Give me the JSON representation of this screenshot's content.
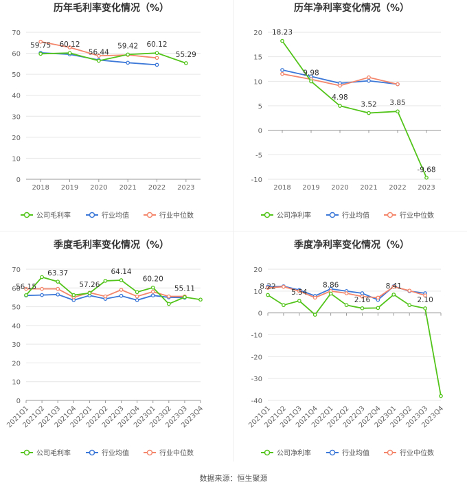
{
  "source_text": "数据来源：恒生聚源",
  "colors": {
    "company": "#52c41a",
    "industry_avg": "#3c78d8",
    "industry_median": "#f4866b",
    "grid": "#e6e6e6",
    "axis_text": "#666666",
    "label_text": "#333333"
  },
  "chart_data": [
    {
      "type": "line",
      "title": "历年毛利率变化情况（%）",
      "categories": [
        "2018",
        "2019",
        "2020",
        "2021",
        "2022",
        "2023"
      ],
      "ylim": [
        0,
        70
      ],
      "yticks": [
        0,
        10,
        20,
        30,
        40,
        50,
        60,
        70
      ],
      "grid": true,
      "legend_position": "bottom",
      "series": [
        {
          "name": "公司毛利率",
          "color": "#52c41a",
          "values": [
            59.75,
            60.12,
            56.44,
            59.42,
            60.12,
            55.29
          ],
          "labels": [
            "59.75",
            "60.12",
            "56.44",
            "59.42",
            "60.12",
            "55.29"
          ]
        },
        {
          "name": "行业均值",
          "color": "#3c78d8",
          "values": [
            60.2,
            59.5,
            56.8,
            55.5,
            54.5,
            null
          ]
        },
        {
          "name": "行业中位数",
          "color": "#f4866b",
          "values": [
            65.5,
            62.8,
            58.8,
            59.2,
            57.8,
            null
          ]
        }
      ]
    },
    {
      "type": "line",
      "title": "历年净利率变化情况（%）",
      "categories": [
        "2018",
        "2019",
        "2020",
        "2021",
        "2022",
        "2023"
      ],
      "ylim": [
        -10,
        20
      ],
      "yticks": [
        -10,
        -5,
        0,
        5,
        10,
        15,
        20
      ],
      "grid": true,
      "legend_position": "bottom",
      "series": [
        {
          "name": "公司净利率",
          "color": "#52c41a",
          "values": [
            18.23,
            9.98,
            4.98,
            3.52,
            3.85,
            -9.68
          ],
          "labels": [
            "18.23",
            "9.98",
            "4.98",
            "3.52",
            "3.85",
            "-9.68"
          ]
        },
        {
          "name": "行业均值",
          "color": "#3c78d8",
          "values": [
            12.3,
            11.0,
            9.6,
            10.1,
            9.4,
            null
          ]
        },
        {
          "name": "行业中位数",
          "color": "#f4866b",
          "values": [
            11.5,
            10.4,
            9.1,
            10.8,
            9.4,
            null
          ]
        }
      ]
    },
    {
      "type": "line",
      "title": "季度毛利率变化情况（%）",
      "categories": [
        "2021Q1",
        "2021Q2",
        "2021Q3",
        "2021Q4",
        "2022Q1",
        "2022Q2",
        "2022Q3",
        "2022Q4",
        "2023Q1",
        "2023Q2",
        "2023Q3",
        "2023Q4"
      ],
      "ylim": [
        0,
        70
      ],
      "yticks": [
        0,
        10,
        20,
        30,
        40,
        50,
        60,
        70
      ],
      "grid": true,
      "legend_position": "bottom",
      "series": [
        {
          "name": "公司毛利率",
          "color": "#52c41a",
          "values": [
            56.15,
            65.8,
            63.37,
            56.2,
            57.26,
            63.8,
            64.14,
            57.8,
            60.2,
            51.5,
            55.11,
            53.8
          ],
          "labels": [
            "56.15",
            "",
            "63.37",
            "",
            "57.26",
            "",
            "64.14",
            "",
            "60.20",
            "",
            "55.11",
            ""
          ]
        },
        {
          "name": "行业均值",
          "color": "#3c78d8",
          "values": [
            56.0,
            56.2,
            56.5,
            53.5,
            56.0,
            54.2,
            55.8,
            53.5,
            56.0,
            55.0,
            54.8,
            null
          ]
        },
        {
          "name": "行业中位数",
          "color": "#f4866b",
          "values": [
            59.5,
            59.5,
            59.5,
            55.0,
            57.5,
            55.5,
            59.0,
            55.5,
            58.0,
            55.5,
            55.5,
            null
          ]
        }
      ]
    },
    {
      "type": "line",
      "title": "季度净利率变化情况（%）",
      "categories": [
        "2021Q1",
        "2021Q2",
        "2021Q3",
        "2021Q4",
        "2022Q1",
        "2022Q2",
        "2022Q3",
        "2022Q4",
        "2023Q1",
        "2023Q2",
        "2023Q3",
        "2023Q4"
      ],
      "ylim": [
        -40,
        20
      ],
      "yticks": [
        -40,
        -30,
        -20,
        -10,
        0,
        10,
        20
      ],
      "grid": true,
      "legend_position": "bottom",
      "series": [
        {
          "name": "公司净利率",
          "color": "#52c41a",
          "values": [
            8.22,
            3.6,
            5.54,
            -0.8,
            8.86,
            3.6,
            2.16,
            2.3,
            8.41,
            3.6,
            2.1,
            -38.0
          ],
          "labels": [
            "8.22",
            "",
            "5.54",
            "",
            "8.86",
            "",
            "2.16",
            "",
            "8.41",
            "",
            "2.10",
            ""
          ]
        },
        {
          "name": "行业均值",
          "color": "#3c78d8",
          "values": [
            12.0,
            12.2,
            10.5,
            7.8,
            11.0,
            10.0,
            9.0,
            6.0,
            12.2,
            10.0,
            9.0,
            null
          ]
        },
        {
          "name": "行业中位数",
          "color": "#f4866b",
          "values": [
            11.5,
            12.0,
            10.0,
            7.0,
            10.0,
            9.0,
            7.5,
            7.0,
            12.0,
            10.2,
            8.0,
            null
          ]
        }
      ]
    }
  ]
}
